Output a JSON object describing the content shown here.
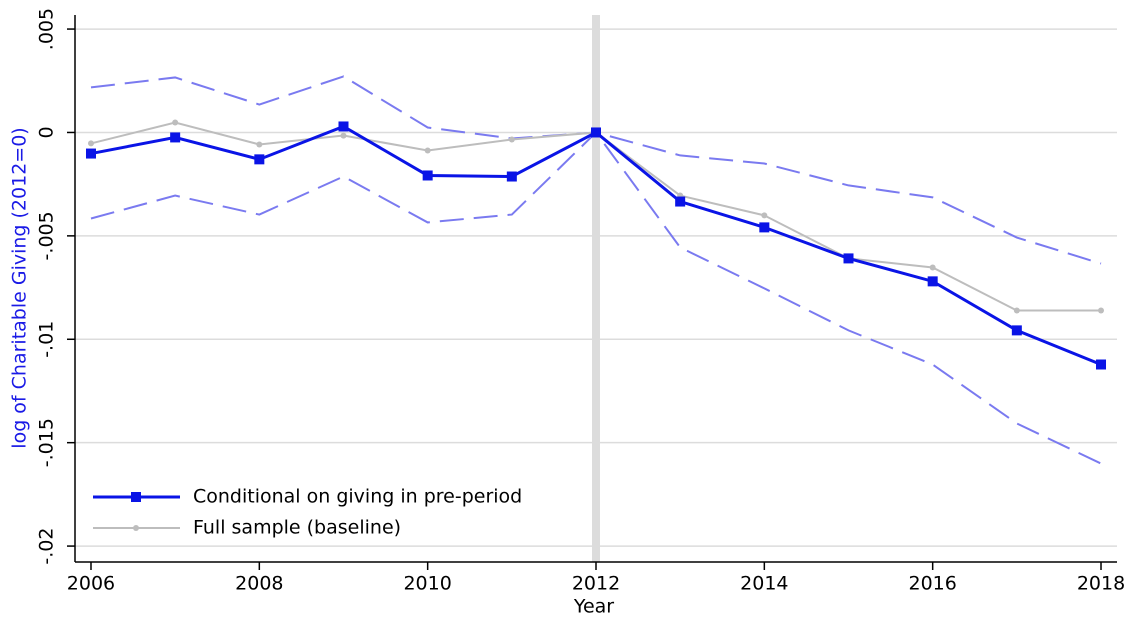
{
  "chart_data": {
    "type": "line",
    "x_label": "Year",
    "y_label": "log of Charitable Giving (2012=0)",
    "x": [
      2006,
      2007,
      2008,
      2009,
      2010,
      2011,
      2012,
      2013,
      2014,
      2015,
      2016,
      2017,
      2018
    ],
    "xlim": [
      2005.81,
      2018.19
    ],
    "xticks": [
      2006,
      2008,
      2010,
      2012,
      2014,
      2016,
      2018
    ],
    "ylim": [
      -0.02077,
      0.00568
    ],
    "yticks": [
      {
        "value": 0.005,
        "label": ".005"
      },
      0,
      {
        "value": -0.005,
        "label": "-.005"
      },
      {
        "value": -0.01,
        "label": "-.01"
      },
      {
        "value": -0.015,
        "label": "-.015"
      },
      {
        "value": -0.02,
        "label": "-.02"
      }
    ],
    "grid": true,
    "vline": 2012,
    "legend": "lower-left",
    "series": [
      {
        "color": "#7a7af0",
        "dash": true,
        "values": [
          0.00218,
          0.00266,
          0.00135,
          0.00271,
          0.00024,
          -0.00029,
          0,
          -0.00111,
          -0.0015,
          -0.00256,
          -0.00314,
          -0.00508,
          -0.00634
        ]
      },
      {
        "color": "#7a7af0",
        "dash": true,
        "values": [
          -0.00416,
          -0.00305,
          -0.00397,
          -0.00213,
          -0.00435,
          -0.00397,
          0,
          -0.00556,
          -0.00754,
          -0.00957,
          -0.01122,
          -0.01407,
          -0.01601
        ]
      },
      {
        "name": "Full sample (baseline)",
        "color": "#bdbdbd",
        "marker": "circle",
        "values": [
          -0.00053,
          0.00048,
          -0.00058,
          -0.00015,
          -0.00087,
          -0.00034,
          0,
          -0.00305,
          -0.00401,
          -0.00609,
          -0.00653,
          -0.00861,
          -0.00861
        ]
      },
      {
        "name": "Conditional on giving in pre-period",
        "color": "#0a14e6",
        "marker": "square",
        "values": [
          -0.00102,
          -0.00024,
          -0.0013,
          0.00029,
          -0.00208,
          -0.00213,
          0,
          -0.00334,
          -0.00459,
          -0.00609,
          -0.0072,
          -0.00957,
          -0.01122
        ]
      }
    ]
  }
}
